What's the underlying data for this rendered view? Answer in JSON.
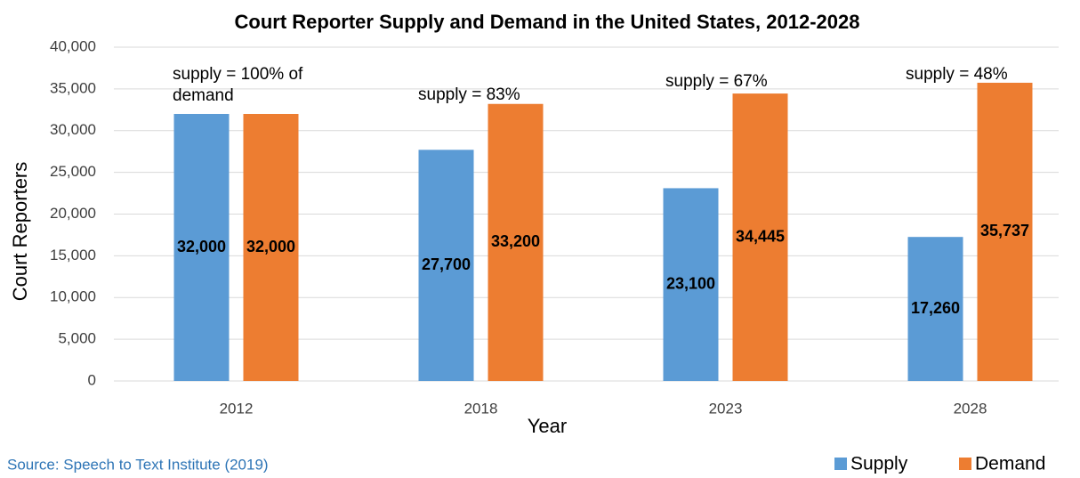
{
  "chart_data": {
    "type": "bar",
    "title": "Court Reporter Supply and Demand in the United States, 2012-2028",
    "x_label": "Year",
    "y_label": "Court Reporters",
    "source": "Source: Speech to Text Institute (2019)",
    "categories": [
      "2012",
      "2018",
      "2023",
      "2028"
    ],
    "series": [
      {
        "name": "Supply",
        "color": "#5b9bd5",
        "values": [
          32000,
          27700,
          23100,
          17260
        ],
        "value_labels": [
          "32,000",
          "27,700",
          "23,100",
          "17,260"
        ]
      },
      {
        "name": "Demand",
        "color": "#ed7d31",
        "values": [
          32000,
          33200,
          34445,
          35737
        ],
        "value_labels": [
          "32,000",
          "33,200",
          "34,445",
          "35,737"
        ]
      }
    ],
    "annotations": [
      "supply = 100% of demand",
      "supply = 83%",
      "supply = 67%",
      "supply = 48%"
    ],
    "ylim": [
      0,
      40000
    ],
    "yticks": [
      0,
      {
        "value": 5000,
        "label": "5,000"
      },
      {
        "value": 10000,
        "label": "10,000"
      },
      {
        "value": 15000,
        "label": "15,000"
      },
      {
        "value": 20000,
        "label": "20,000"
      },
      {
        "value": 25000,
        "label": "25,000"
      },
      {
        "value": 30000,
        "label": "30,000"
      },
      {
        "value": 35000,
        "label": "35,000"
      },
      {
        "value": 40000,
        "label": "40,000"
      }
    ],
    "grid": true,
    "legend": "bottom-right"
  }
}
